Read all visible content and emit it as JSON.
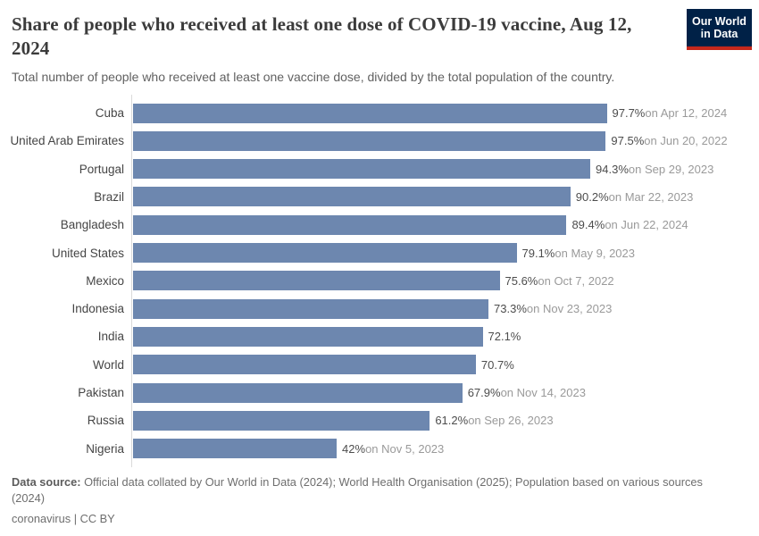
{
  "header": {
    "title": "Share of people who received at least one dose of COVID-19 vaccine, Aug 12, 2024",
    "subtitle": "Total number of people who received at least one vaccine dose, divided by the total population of the country."
  },
  "logo": {
    "line1": "Our World",
    "line2": "in Data",
    "bg_color": "#002147",
    "accent_color": "#c5281c"
  },
  "chart_data": {
    "type": "bar",
    "orientation": "horizontal",
    "title": "Share of people who received at least one dose of COVID-19 vaccine, Aug 12, 2024",
    "subtitle": "Total number of people who received at least one vaccine dose, divided by the total population of the country.",
    "xlim": [
      0,
      100
    ],
    "grid": false,
    "bar_color": "#6d87af",
    "unit": "%",
    "categories": [
      "Cuba",
      "United Arab Emirates",
      "Portugal",
      "Brazil",
      "Bangladesh",
      "United States",
      "Mexico",
      "Indonesia",
      "India",
      "World",
      "Pakistan",
      "Russia",
      "Nigeria"
    ],
    "values": [
      97.7,
      97.5,
      94.3,
      90.2,
      89.4,
      79.1,
      75.6,
      73.3,
      72.1,
      70.7,
      67.9,
      61.2,
      42
    ],
    "entities": [
      {
        "name": "Cuba",
        "value": 97.7,
        "value_label": "97.7%",
        "date_label": "on Apr 12, 2024"
      },
      {
        "name": "United Arab Emirates",
        "value": 97.5,
        "value_label": "97.5%",
        "date_label": "on Jun 20, 2022"
      },
      {
        "name": "Portugal",
        "value": 94.3,
        "value_label": "94.3%",
        "date_label": "on Sep 29, 2023"
      },
      {
        "name": "Brazil",
        "value": 90.2,
        "value_label": "90.2%",
        "date_label": "on Mar 22, 2023"
      },
      {
        "name": "Bangladesh",
        "value": 89.4,
        "value_label": "89.4%",
        "date_label": "on Jun 22, 2024"
      },
      {
        "name": "United States",
        "value": 79.1,
        "value_label": "79.1%",
        "date_label": "on May 9, 2023"
      },
      {
        "name": "Mexico",
        "value": 75.6,
        "value_label": "75.6%",
        "date_label": "on Oct 7, 2022"
      },
      {
        "name": "Indonesia",
        "value": 73.3,
        "value_label": "73.3%",
        "date_label": "on Nov 23, 2023"
      },
      {
        "name": "India",
        "value": 72.1,
        "value_label": "72.1%",
        "date_label": ""
      },
      {
        "name": "World",
        "value": 70.7,
        "value_label": "70.7%",
        "date_label": ""
      },
      {
        "name": "Pakistan",
        "value": 67.9,
        "value_label": "67.9%",
        "date_label": "on Nov 14, 2023"
      },
      {
        "name": "Russia",
        "value": 61.2,
        "value_label": "61.2%",
        "date_label": "on Sep 26, 2023"
      },
      {
        "name": "Nigeria",
        "value": 42,
        "value_label": "42%",
        "date_label": "on Nov 5, 2023"
      }
    ]
  },
  "footer": {
    "data_source_label": "Data source:",
    "data_source_text": "Official data collated by Our World in Data (2024); World Health Organisation (2025); Population based on various sources (2024)",
    "license_text": "coronavirus | CC BY"
  }
}
